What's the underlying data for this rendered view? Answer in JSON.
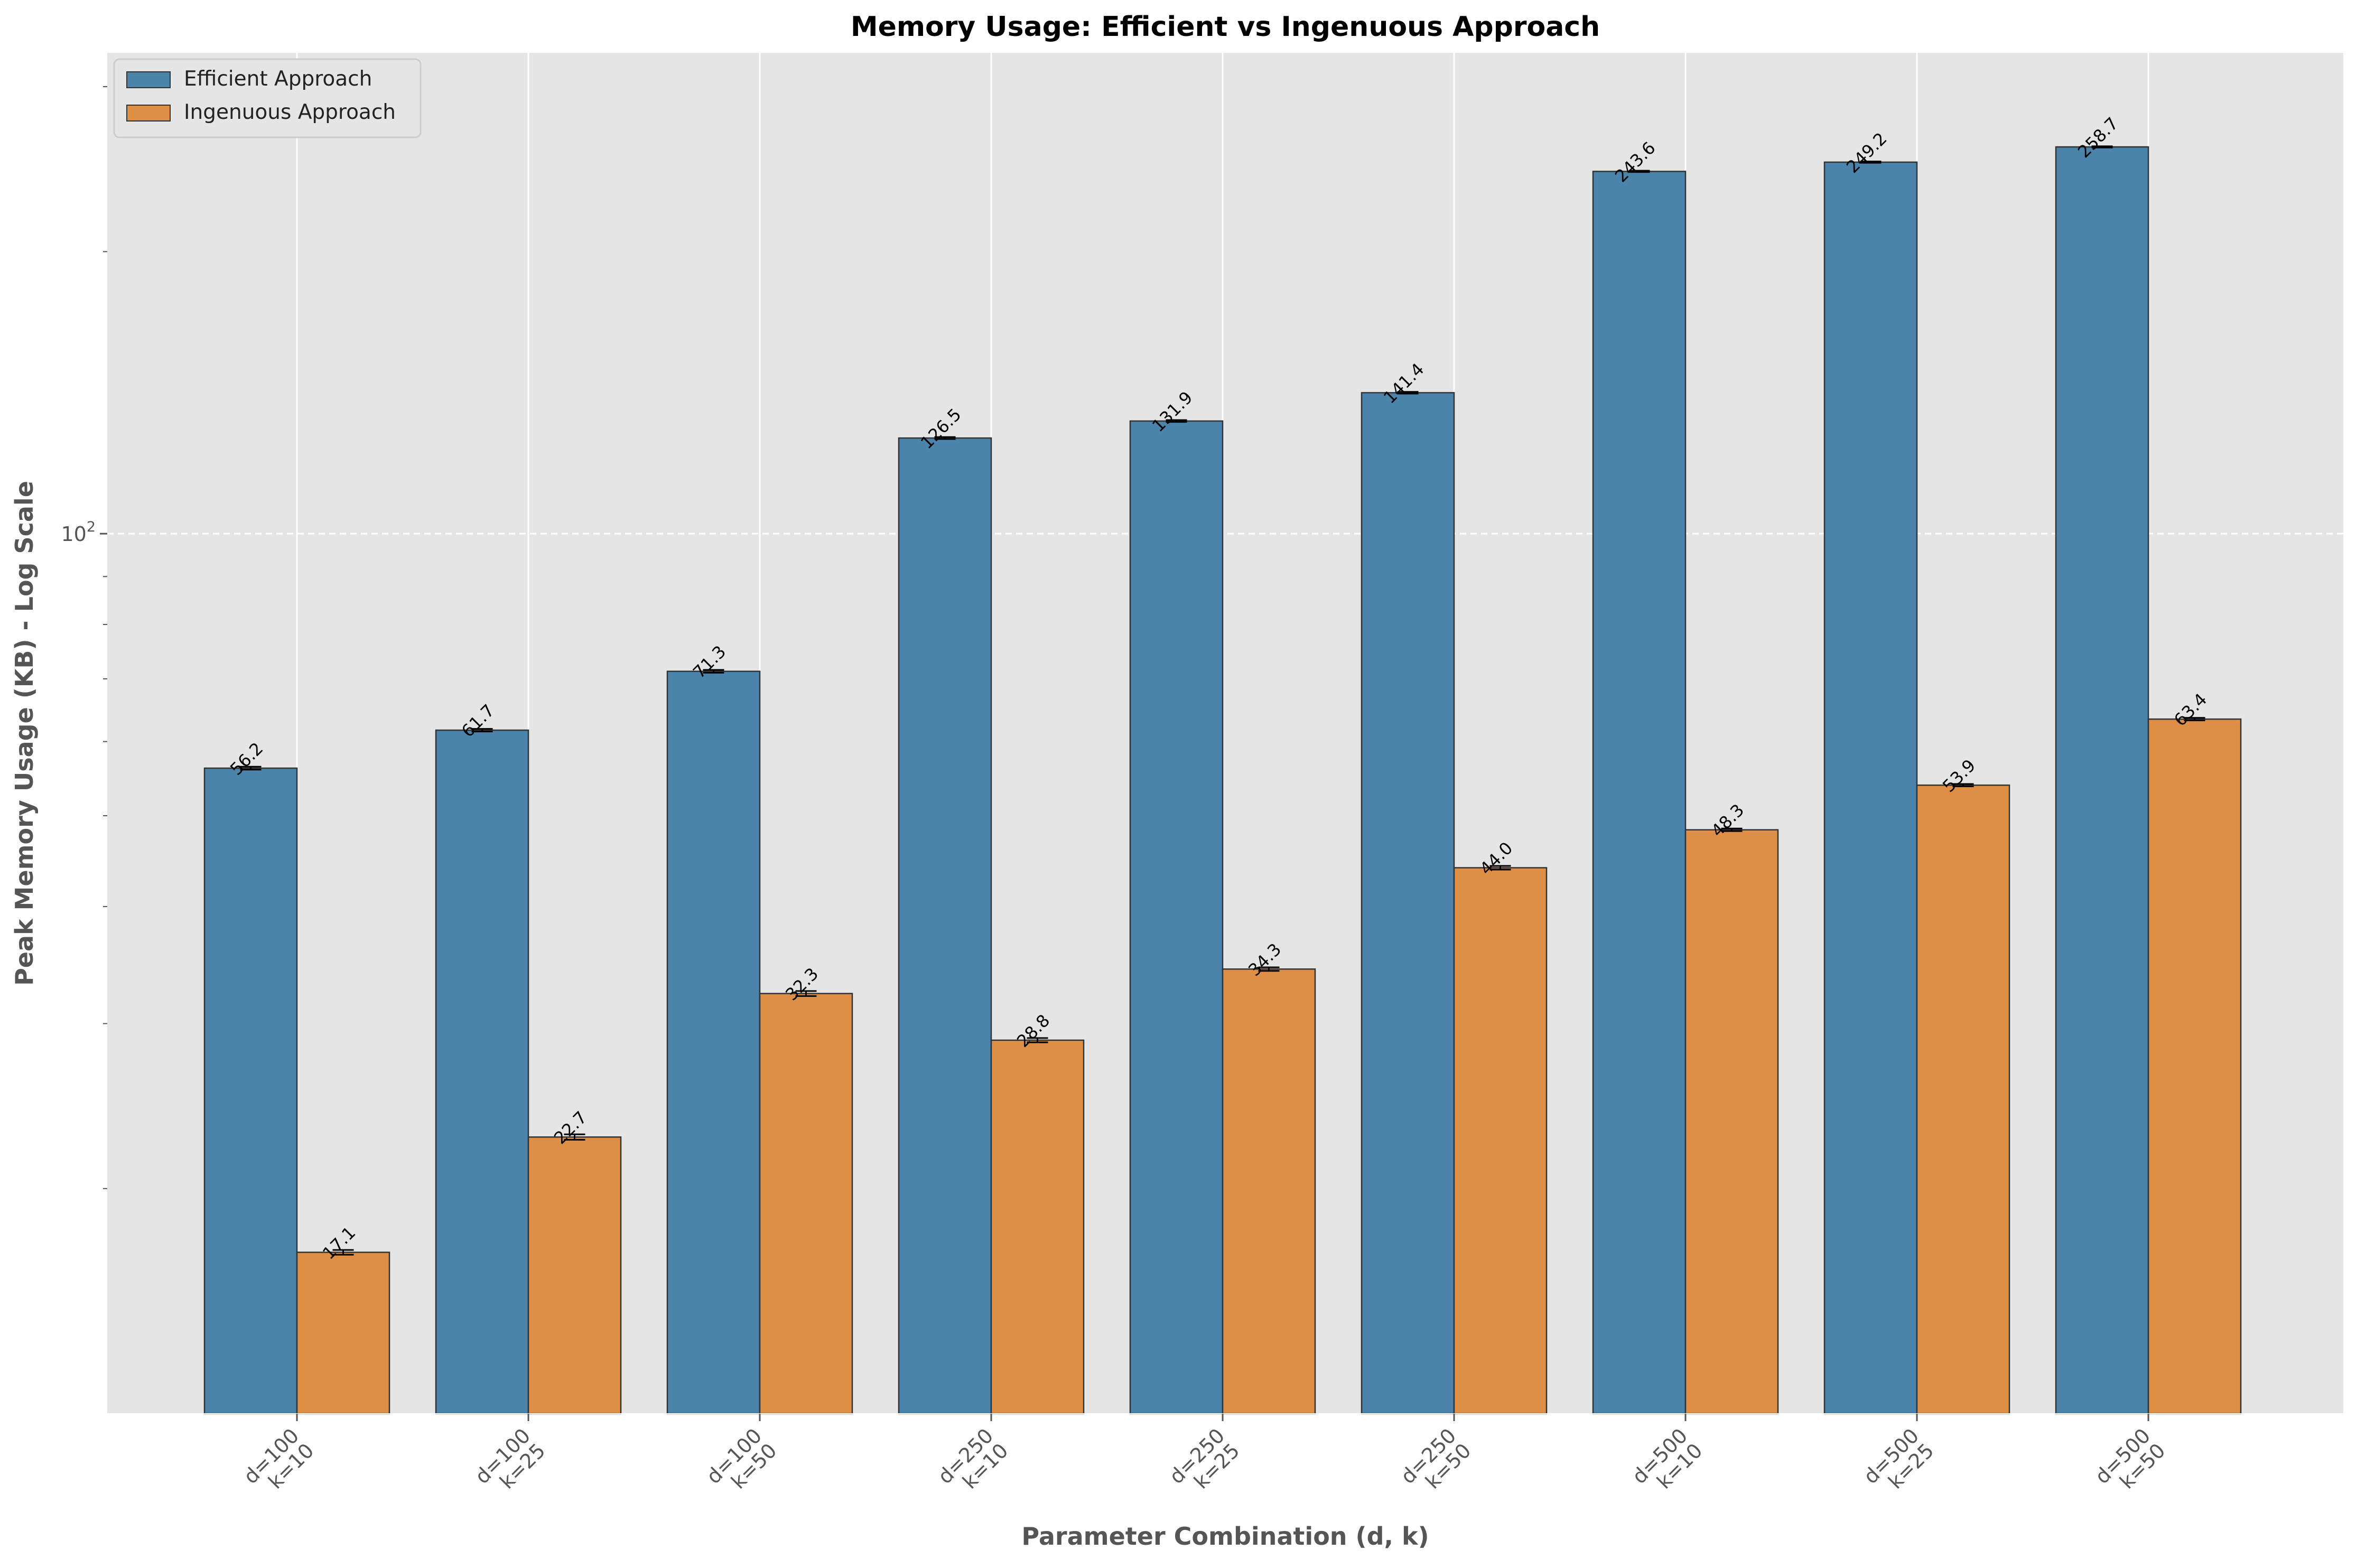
{
  "chart_data": {
    "type": "bar",
    "title": "Memory Usage: Efficient vs Ingenuous Approach",
    "xlabel": "Parameter Combination (d, k)",
    "ylabel": "Peak Memory Usage (KB) - Log Scale",
    "y_scale": "log",
    "ylim": [
      11.5,
      326
    ],
    "y_major_ticks": [
      {
        "value": 100,
        "label_base": "10",
        "label_exp": "2"
      }
    ],
    "y_minor_ticks": [
      20,
      30,
      40,
      50,
      60,
      70,
      80,
      90,
      200,
      300
    ],
    "grid": true,
    "legend_position": "top-left",
    "categories": [
      {
        "line1": "d=100",
        "line2": "k=10"
      },
      {
        "line1": "d=100",
        "line2": "k=25"
      },
      {
        "line1": "d=100",
        "line2": "k=50"
      },
      {
        "line1": "d=250",
        "line2": "k=10"
      },
      {
        "line1": "d=250",
        "line2": "k=25"
      },
      {
        "line1": "d=250",
        "line2": "k=50"
      },
      {
        "line1": "d=500",
        "line2": "k=10"
      },
      {
        "line1": "d=500",
        "line2": "k=25"
      },
      {
        "line1": "d=500",
        "line2": "k=50"
      }
    ],
    "series": [
      {
        "name": "Efficient Approach",
        "color": "#4b83aa",
        "values": [
          56.2,
          61.7,
          71.3,
          126.5,
          131.9,
          141.4,
          243.6,
          249.2,
          258.7
        ],
        "labels": [
          "56.2",
          "61.7",
          "71.3",
          "126.5",
          "131.9",
          "141.4",
          "243.6",
          "249.2",
          "258.7"
        ],
        "errors": [
          0.2,
          0.2,
          0.25,
          0.3,
          0.3,
          0.3,
          0.4,
          0.4,
          0.4
        ]
      },
      {
        "name": "Ingenuous Approach",
        "color": "#df8e45",
        "values": [
          17.1,
          22.7,
          32.3,
          28.8,
          34.3,
          44.0,
          48.3,
          53.9,
          63.4
        ],
        "labels": [
          "17.1",
          "22.7",
          "32.3",
          "28.8",
          "34.3",
          "44.0",
          "48.3",
          "53.9",
          "63.4"
        ],
        "errors": [
          0.1,
          0.15,
          0.2,
          0.15,
          0.15,
          0.2,
          0.15,
          0.15,
          0.2
        ]
      }
    ]
  }
}
